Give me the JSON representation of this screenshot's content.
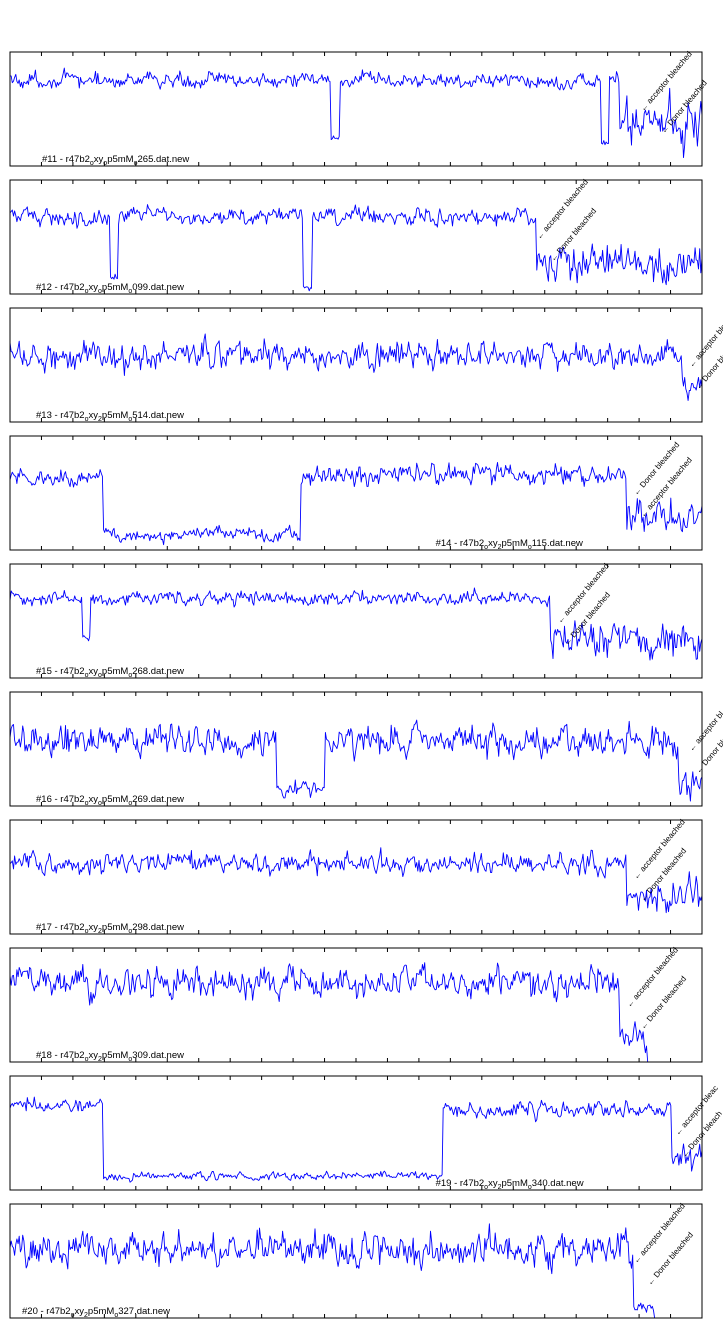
{
  "chart_data": [
    {
      "type": "line",
      "title": "#11 - r47b2",
      "label_parts": [
        "#11 - r47b2",
        "o",
        "xy",
        "o",
        "p5mM",
        "o",
        "265.dat.new"
      ],
      "label_pos": "bottom-left",
      "segments": [
        {
          "x": [
            0.0,
            0.88
          ],
          "y_mean": 0.75,
          "y_noise": 0.11
        },
        {
          "x": [
            0.88,
            1.0
          ],
          "y_mean": 0.4,
          "y_noise": 0.38
        }
      ],
      "dips": [
        [
          0.47,
          0.25
        ],
        [
          0.86,
          0.2
        ]
      ],
      "annotations": [
        {
          "text": "acceptor bleached",
          "x": 0.91
        },
        {
          "text": "Donor bleached",
          "x": 0.94
        }
      ],
      "series_color": "#0000ff"
    },
    {
      "type": "line",
      "title": "#12 - r47b2",
      "label_parts": [
        "#12 - r47b2",
        "o",
        "xy",
        "o",
        "p5mM",
        "o",
        "099.dat.new"
      ],
      "label_pos": "bottom-left",
      "segments": [
        {
          "x": [
            0.0,
            0.76
          ],
          "y_mean": 0.68,
          "y_noise": 0.12
        },
        {
          "x": [
            0.76,
            1.0
          ],
          "y_mean": 0.28,
          "y_noise": 0.3
        }
      ],
      "dips": [
        [
          0.15,
          0.15
        ],
        [
          0.43,
          0.05
        ]
      ],
      "annotations": [
        {
          "text": "acceptor bleached",
          "x": 0.76
        },
        {
          "text": "Donor bleached",
          "x": 0.78
        }
      ],
      "series_color": "#0000ff"
    },
    {
      "type": "line",
      "title": "#13 - r47b2",
      "label_parts": [
        "#13 - r47b2",
        "o",
        "xy",
        "2",
        "p5mM",
        "o",
        "514.dat.new"
      ],
      "label_pos": "bottom-left",
      "segments": [
        {
          "x": [
            0.0,
            0.97
          ],
          "y_mean": 0.58,
          "y_noise": 0.2
        },
        {
          "x": [
            0.97,
            1.0
          ],
          "y_mean": 0.3,
          "y_noise": 0.2
        }
      ],
      "dips": [],
      "annotations": [
        {
          "text": "acceptor bleached",
          "x": 0.98
        },
        {
          "text": "Donor bleached",
          "x": 0.99
        }
      ],
      "series_color": "#0000ff"
    },
    {
      "type": "line",
      "title": "#14 - r47b2",
      "label_parts": [
        "#14 - r47b2",
        "o",
        "xy",
        "2",
        "p5mM",
        "o",
        "115.dat.new"
      ],
      "label_pos": "bottom-right",
      "segments": [
        {
          "x": [
            0.0,
            0.135
          ],
          "y_mean": 0.63,
          "y_noise": 0.13
        },
        {
          "x": [
            0.135,
            0.42
          ],
          "y_mean": 0.14,
          "y_noise": 0.1
        },
        {
          "x": [
            0.42,
            0.89
          ],
          "y_mean": 0.66,
          "y_noise": 0.14
        },
        {
          "x": [
            0.89,
            1.0
          ],
          "y_mean": 0.28,
          "y_noise": 0.26
        }
      ],
      "dips": [],
      "annotations": [
        {
          "text": "Donor bleached",
          "x": 0.9
        },
        {
          "text": "acceptor bleached",
          "x": 0.91
        }
      ],
      "series_color": "#0000ff"
    },
    {
      "type": "line",
      "title": "#15 - r47b2",
      "label_parts": [
        "#15 - r47b2",
        "o",
        "xy",
        "o",
        "p5mM",
        "o",
        "268.dat.new"
      ],
      "label_pos": "bottom-left",
      "segments": [
        {
          "x": [
            0.0,
            0.78
          ],
          "y_mean": 0.7,
          "y_noise": 0.1
        },
        {
          "x": [
            0.78,
            1.0
          ],
          "y_mean": 0.35,
          "y_noise": 0.28
        }
      ],
      "dips": [
        [
          0.11,
          0.35
        ]
      ],
      "annotations": [
        {
          "text": "acceptor bleached",
          "x": 0.79
        },
        {
          "text": "Donor bleached",
          "x": 0.8
        }
      ],
      "series_color": "#0000ff"
    },
    {
      "type": "line",
      "title": "#16 - r47b2",
      "label_parts": [
        "#16 - r47b2",
        "o",
        "xy",
        "o",
        "p5mM",
        "o",
        "269.dat.new"
      ],
      "label_pos": "bottom-left",
      "segments": [
        {
          "x": [
            0.0,
            0.385
          ],
          "y_mean": 0.58,
          "y_noise": 0.22
        },
        {
          "x": [
            0.385,
            0.455
          ],
          "y_mean": 0.15,
          "y_noise": 0.12
        },
        {
          "x": [
            0.455,
            0.965
          ],
          "y_mean": 0.56,
          "y_noise": 0.22
        },
        {
          "x": [
            0.965,
            1.0
          ],
          "y_mean": 0.25,
          "y_noise": 0.25
        }
      ],
      "dips": [],
      "annotations": [
        {
          "text": "acceptor bl",
          "x": 0.98
        },
        {
          "text": "Donor blea",
          "x": 0.99
        }
      ],
      "series_color": "#0000ff"
    },
    {
      "type": "line",
      "title": "#17 - r47b2",
      "label_parts": [
        "#17 - r47b2",
        "o",
        "xy",
        "2",
        "p5mM",
        "o",
        "298.dat.new"
      ],
      "label_pos": "bottom-left",
      "segments": [
        {
          "x": [
            0.0,
            0.89
          ],
          "y_mean": 0.62,
          "y_noise": 0.15
        },
        {
          "x": [
            0.89,
            1.0
          ],
          "y_mean": 0.32,
          "y_noise": 0.22
        }
      ],
      "dips": [],
      "annotations": [
        {
          "text": "acceptor bleached",
          "x": 0.9
        },
        {
          "text": "Donor bleached",
          "x": 0.91
        }
      ],
      "series_color": "#0000ff"
    },
    {
      "type": "line",
      "title": "#18 - r47b2",
      "label_parts": [
        "#18 - r47b2",
        "o",
        "xy",
        "2",
        "p5mM",
        "o",
        "309.dat.new"
      ],
      "label_pos": "bottom-left",
      "segments": [
        {
          "x": [
            0.0,
            0.88
          ],
          "y_mean": 0.7,
          "y_noise": 0.2
        },
        {
          "x": [
            0.88,
            0.92
          ],
          "y_mean": 0.2,
          "y_noise": 0.2
        },
        {
          "x": [
            0.92,
            1.0
          ],
          "y_mean": 0.0,
          "y_noise": 0.0
        }
      ],
      "dips": [],
      "annotations": [
        {
          "text": "acceptor bleached",
          "x": 0.89
        },
        {
          "text": "Donor bleached",
          "x": 0.91
        }
      ],
      "series_color": "#0000ff"
    },
    {
      "type": "line",
      "title": "#19 - r47b2",
      "label_parts": [
        "#19 - r47b2",
        "o",
        "xy",
        "2",
        "p5mM",
        "o",
        "340.dat.new"
      ],
      "label_pos": "bottom-right",
      "segments": [
        {
          "x": [
            0.0,
            0.135
          ],
          "y_mean": 0.74,
          "y_noise": 0.1
        },
        {
          "x": [
            0.135,
            0.625
          ],
          "y_mean": 0.12,
          "y_noise": 0.06
        },
        {
          "x": [
            0.625,
            0.955
          ],
          "y_mean": 0.7,
          "y_noise": 0.11
        },
        {
          "x": [
            0.955,
            1.0
          ],
          "y_mean": 0.3,
          "y_noise": 0.18
        }
      ],
      "dips": [],
      "annotations": [
        {
          "text": "acceptor bleac",
          "x": 0.96
        },
        {
          "text": "Donor bleach",
          "x": 0.97
        }
      ],
      "series_color": "#0000ff"
    },
    {
      "type": "line",
      "title": "#20 - r47b2",
      "label_parts": [
        "#20 - r47b2",
        "o",
        "xy",
        "2",
        "p5mM",
        "o",
        "327.dat.new"
      ],
      "label_pos": "bottom-left",
      "segments": [
        {
          "x": [
            0.0,
            0.9
          ],
          "y_mean": 0.6,
          "y_noise": 0.24
        },
        {
          "x": [
            0.9,
            0.93
          ],
          "y_mean": 0.1,
          "y_noise": 0.1
        },
        {
          "x": [
            0.93,
            1.0
          ],
          "y_mean": 0.0,
          "y_noise": 0.0
        }
      ],
      "dips": [],
      "annotations": [
        {
          "text": "acceptor bleached",
          "x": 0.9
        },
        {
          "text": "Donor bleached",
          "x": 0.92
        }
      ],
      "series_color": "#0000ff"
    }
  ]
}
